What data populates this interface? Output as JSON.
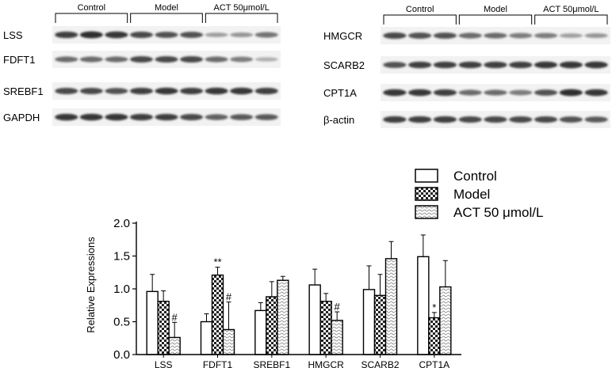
{
  "blots": {
    "left": {
      "groups": [
        "Control",
        "Model",
        "ACT 50μmol/L"
      ],
      "rows": [
        {
          "label": "LSS",
          "intensity": [
            0.85,
            0.95,
            0.9,
            0.8,
            0.75,
            0.75,
            0.3,
            0.35,
            0.55
          ]
        },
        {
          "label": "FDFT1",
          "intensity": [
            0.6,
            0.6,
            0.6,
            0.8,
            0.8,
            0.8,
            0.6,
            0.5,
            0.2
          ]
        },
        {
          "label": "SREBF1",
          "intensity": [
            0.8,
            0.8,
            0.75,
            0.85,
            0.9,
            0.85,
            0.9,
            0.9,
            0.85
          ]
        },
        {
          "label": "GAPDH",
          "intensity": [
            0.9,
            0.9,
            0.9,
            0.85,
            0.85,
            0.8,
            0.65,
            0.7,
            0.7
          ]
        }
      ]
    },
    "right": {
      "groups": [
        "Control",
        "Model",
        "ACT 50μmol/L"
      ],
      "rows": [
        {
          "label": "HMGCR",
          "intensity": [
            0.8,
            0.75,
            0.75,
            0.6,
            0.6,
            0.5,
            0.5,
            0.3,
            0.35
          ]
        },
        {
          "label": "SCARB2",
          "intensity": [
            0.75,
            0.85,
            0.85,
            0.85,
            0.85,
            0.85,
            0.9,
            0.9,
            0.9
          ]
        },
        {
          "label": "CPT1A",
          "intensity": [
            0.9,
            0.9,
            0.85,
            0.6,
            0.6,
            0.5,
            0.75,
            0.95,
            0.9
          ]
        },
        {
          "label": "β-actin",
          "intensity": [
            0.85,
            0.85,
            0.85,
            0.8,
            0.8,
            0.8,
            0.8,
            0.75,
            0.7
          ]
        }
      ]
    }
  },
  "chart_data": {
    "type": "bar",
    "categories": [
      "LSS",
      "FDFT1",
      "SREBF1",
      "HMGCR",
      "SCARB2",
      "CPT1A"
    ],
    "series": [
      {
        "name": "Control",
        "values": [
          0.96,
          0.5,
          0.67,
          1.06,
          0.99,
          1.49
        ],
        "errors": [
          0.26,
          0.12,
          0.12,
          0.24,
          0.36,
          0.33
        ],
        "pattern": "white"
      },
      {
        "name": "Model",
        "values": [
          0.81,
          1.21,
          0.88,
          0.81,
          0.9,
          0.56
        ],
        "errors": [
          0.16,
          0.12,
          0.23,
          0.12,
          0.32,
          0.08
        ],
        "pattern": "checker"
      },
      {
        "name": "ACT 50 μmol/L",
        "values": [
          0.26,
          0.38,
          1.13,
          0.52,
          1.46,
          1.03
        ],
        "errors": [
          0.23,
          0.42,
          0.06,
          0.13,
          0.26,
          0.4
        ],
        "pattern": "wave"
      }
    ],
    "annotations": [
      {
        "category": "LSS",
        "series": 2,
        "text": "#"
      },
      {
        "category": "FDFT1",
        "series": 1,
        "text": "**"
      },
      {
        "category": "FDFT1",
        "series": 2,
        "text": "#"
      },
      {
        "category": "HMGCR",
        "series": 2,
        "text": "#"
      },
      {
        "category": "CPT1A",
        "series": 1,
        "text": "*"
      }
    ],
    "title": "",
    "xlabel": "",
    "ylabel": "Relative Expressions",
    "ylim": [
      0,
      2.0
    ],
    "yticks": [
      "0.0",
      "0.5",
      "1.0",
      "1.5",
      "2.0"
    ],
    "grid": false,
    "legend": "top-right"
  },
  "colors": {
    "ink": "#000000",
    "band": "#1a1a1a",
    "blot_bg": "#f2f2f2",
    "bar_fill": "#ffffff"
  }
}
